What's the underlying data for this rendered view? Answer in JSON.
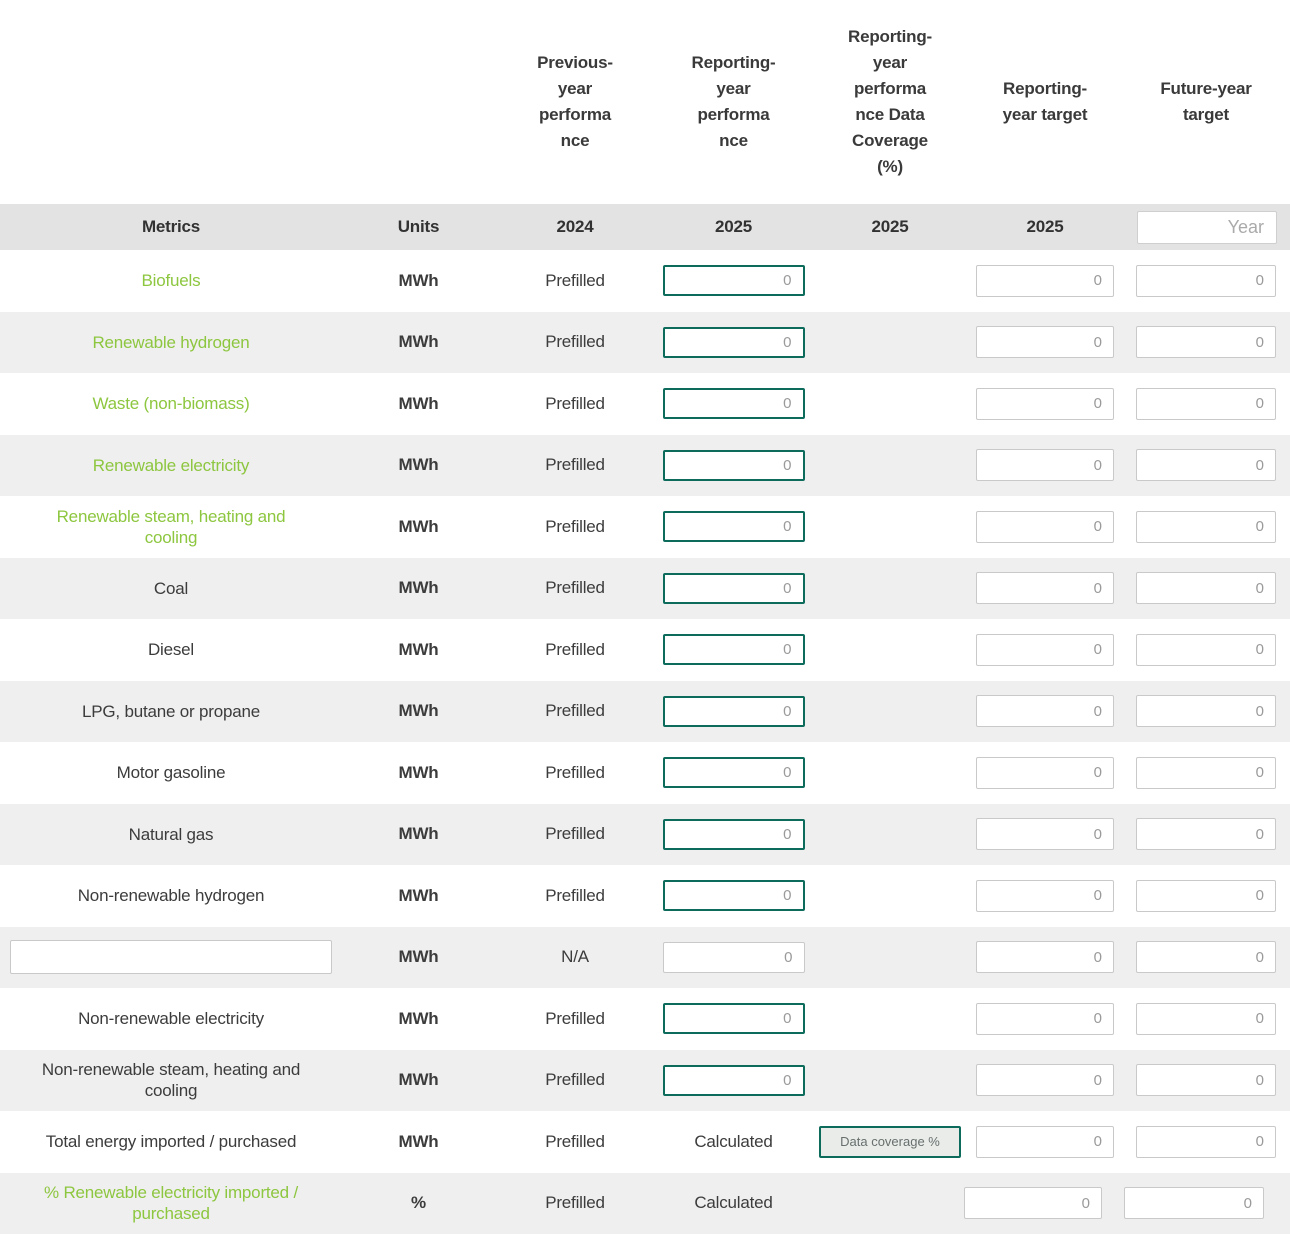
{
  "colors": {
    "accent_teal": "#0d6b5c",
    "metric_green": "#8dc63f",
    "subheader_bar_bg": "#e3e3e3",
    "stripe_bg": "#efefef",
    "input_border_grey": "#c9c9c9",
    "input_value_grey": "#9a9a9a"
  },
  "header": {
    "columns": {
      "previous": "Previous-\nyear\nperforma\nnce",
      "reporting": "Reporting-\nyear\nperforma\nnce",
      "coverage": "Reporting-\nyear\nperforma\nnce Data\nCoverage\n(%)",
      "target": "Reporting-\nyear target",
      "future": "Future-year\ntarget"
    },
    "sub": {
      "metrics": "Metrics",
      "units": "Units",
      "previous_year": "2024",
      "reporting_year": "2025",
      "coverage_year": "2025",
      "target_year": "2025",
      "year_placeholder": "Year"
    }
  },
  "rows": [
    {
      "metric": "Biofuels",
      "green": true,
      "metric_is_input": false,
      "units": "MWh",
      "previous": "Prefilled",
      "reporting": {
        "kind": "input-accent",
        "value": "0"
      },
      "coverage": null,
      "target": "0",
      "future": "0",
      "shift_inputs": false
    },
    {
      "metric": "Renewable hydrogen",
      "green": true,
      "metric_is_input": false,
      "units": "MWh",
      "previous": "Prefilled",
      "reporting": {
        "kind": "input-accent",
        "value": "0"
      },
      "coverage": null,
      "target": "0",
      "future": "0",
      "shift_inputs": false
    },
    {
      "metric": "Waste (non-biomass)",
      "green": true,
      "metric_is_input": false,
      "units": "MWh",
      "previous": "Prefilled",
      "reporting": {
        "kind": "input-accent",
        "value": "0"
      },
      "coverage": null,
      "target": "0",
      "future": "0",
      "shift_inputs": false
    },
    {
      "metric": "Renewable electricity",
      "green": true,
      "metric_is_input": false,
      "units": "MWh",
      "previous": "Prefilled",
      "reporting": {
        "kind": "input-accent",
        "value": "0"
      },
      "coverage": null,
      "target": "0",
      "future": "0",
      "shift_inputs": false
    },
    {
      "metric": "Renewable steam, heating and cooling",
      "green": true,
      "metric_is_input": false,
      "units": "MWh",
      "previous": "Prefilled",
      "reporting": {
        "kind": "input-accent",
        "value": "0"
      },
      "coverage": null,
      "target": "0",
      "future": "0",
      "shift_inputs": false
    },
    {
      "metric": "Coal",
      "green": false,
      "metric_is_input": false,
      "units": "MWh",
      "previous": "Prefilled",
      "reporting": {
        "kind": "input-accent",
        "value": "0"
      },
      "coverage": null,
      "target": "0",
      "future": "0",
      "shift_inputs": false
    },
    {
      "metric": "Diesel",
      "green": false,
      "metric_is_input": false,
      "units": "MWh",
      "previous": "Prefilled",
      "reporting": {
        "kind": "input-accent",
        "value": "0"
      },
      "coverage": null,
      "target": "0",
      "future": "0",
      "shift_inputs": false
    },
    {
      "metric": "LPG, butane or propane",
      "green": false,
      "metric_is_input": false,
      "units": "MWh",
      "previous": "Prefilled",
      "reporting": {
        "kind": "input-accent",
        "value": "0"
      },
      "coverage": null,
      "target": "0",
      "future": "0",
      "shift_inputs": false
    },
    {
      "metric": "Motor gasoline",
      "green": false,
      "metric_is_input": false,
      "units": "MWh",
      "previous": "Prefilled",
      "reporting": {
        "kind": "input-accent",
        "value": "0"
      },
      "coverage": null,
      "target": "0",
      "future": "0",
      "shift_inputs": false
    },
    {
      "metric": "Natural gas",
      "green": false,
      "metric_is_input": false,
      "units": "MWh",
      "previous": "Prefilled",
      "reporting": {
        "kind": "input-accent",
        "value": "0"
      },
      "coverage": null,
      "target": "0",
      "future": "0",
      "shift_inputs": false
    },
    {
      "metric": "Non-renewable hydrogen",
      "green": false,
      "metric_is_input": false,
      "units": "MWh",
      "previous": "Prefilled",
      "reporting": {
        "kind": "input-accent",
        "value": "0"
      },
      "coverage": null,
      "target": "0",
      "future": "0",
      "shift_inputs": false
    },
    {
      "metric": "",
      "green": false,
      "metric_is_input": true,
      "units": "MWh",
      "previous": "N/A",
      "reporting": {
        "kind": "input-plain",
        "value": "0"
      },
      "coverage": null,
      "target": "0",
      "future": "0",
      "shift_inputs": false
    },
    {
      "metric": "Non-renewable electricity",
      "green": false,
      "metric_is_input": false,
      "units": "MWh",
      "previous": "Prefilled",
      "reporting": {
        "kind": "input-accent",
        "value": "0"
      },
      "coverage": null,
      "target": "0",
      "future": "0",
      "shift_inputs": false
    },
    {
      "metric": "Non-renewable steam, heating and cooling",
      "green": false,
      "metric_is_input": false,
      "units": "MWh",
      "previous": "Prefilled",
      "reporting": {
        "kind": "input-accent",
        "value": "0"
      },
      "coverage": null,
      "target": "0",
      "future": "0",
      "shift_inputs": false
    },
    {
      "metric": "Total energy imported / purchased",
      "green": false,
      "metric_is_input": false,
      "units": "MWh",
      "previous": "Prefilled",
      "reporting": {
        "kind": "text",
        "value": "Calculated"
      },
      "coverage": {
        "kind": "button",
        "label": "Data coverage %"
      },
      "target": "0",
      "future": "0",
      "shift_inputs": false
    },
    {
      "metric": "% Renewable electricity imported / purchased",
      "green": true,
      "metric_is_input": false,
      "units": "%",
      "previous": "Prefilled",
      "reporting": {
        "kind": "text",
        "value": "Calculated"
      },
      "coverage": null,
      "target": "0",
      "future": "0",
      "shift_inputs": true
    }
  ]
}
